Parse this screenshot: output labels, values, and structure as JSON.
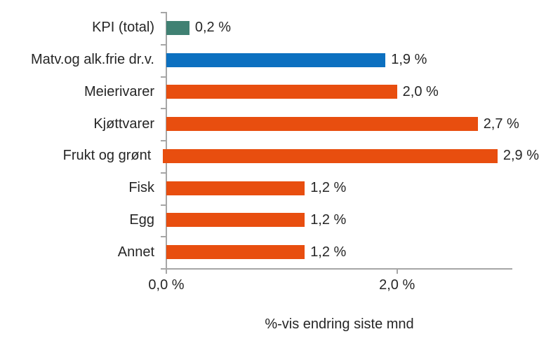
{
  "chart_data": {
    "type": "bar",
    "orientation": "horizontal",
    "categories": [
      "KPI (total)",
      "Matv.og alk.frie dr.v.",
      "Meierivarer",
      "Kjøttvarer",
      "Frukt og grønt",
      "Fisk",
      "Egg",
      "Annet"
    ],
    "values": [
      0.2,
      1.9,
      2.0,
      2.7,
      2.9,
      1.2,
      1.2,
      1.2
    ],
    "value_labels": [
      "0,2 %",
      "1,9 %",
      "2,0 %",
      "2,7 %",
      "2,9 %",
      "1,2 %",
      "1,2 %",
      "1,2 %"
    ],
    "bar_colors": [
      "#408173",
      "#0C70C0",
      "#E84E0F",
      "#E84E0F",
      "#E84E0F",
      "#E84E0F",
      "#E84E0F",
      "#E84E0F"
    ],
    "xlabel": "%-vis endring siste mnd",
    "x_ticks": [
      {
        "value": 0.0,
        "label": "0,0 %"
      },
      {
        "value": 2.0,
        "label": "2,0 %"
      }
    ],
    "xlim": [
      0,
      3.0
    ],
    "grid": false,
    "legend": false,
    "axis_color": "#A6A6A6",
    "text_color": "#262626"
  }
}
